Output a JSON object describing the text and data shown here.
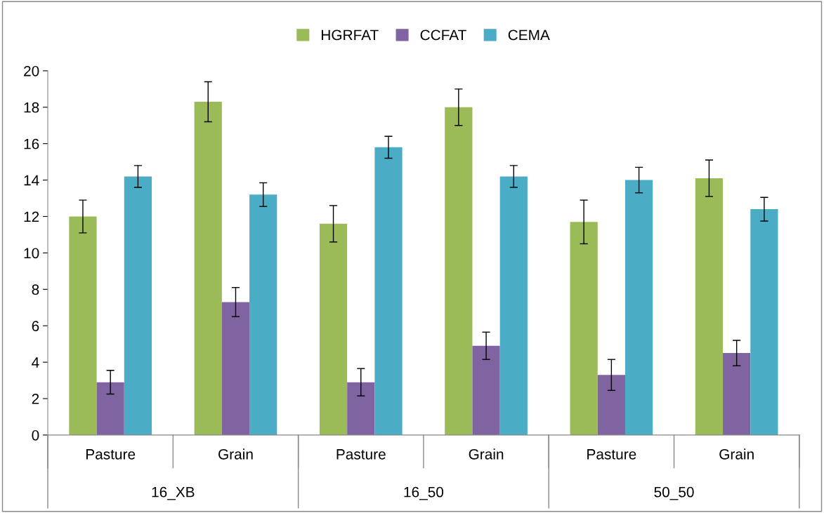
{
  "chart_data": {
    "type": "bar",
    "categories": [
      "Pasture",
      "Grain",
      "Pasture",
      "Grain",
      "Pasture",
      "Grain"
    ],
    "series": [
      {
        "name": "HGRFAT",
        "color": "#9bbb59",
        "values": [
          12.0,
          18.3,
          11.6,
          18.0,
          11.7,
          14.1
        ],
        "errors": [
          0.9,
          1.1,
          1.0,
          1.0,
          1.2,
          1.0
        ]
      },
      {
        "name": "CCFAT",
        "color": "#8064a2",
        "values": [
          2.9,
          7.3,
          2.9,
          4.9,
          3.3,
          4.5
        ],
        "errors": [
          0.65,
          0.8,
          0.75,
          0.75,
          0.85,
          0.7
        ]
      },
      {
        "name": "CEMA",
        "color": "#4bacc6",
        "values": [
          14.2,
          13.2,
          15.8,
          14.2,
          14.0,
          12.4
        ],
        "errors": [
          0.6,
          0.65,
          0.6,
          0.6,
          0.7,
          0.65
        ]
      }
    ],
    "annotations": [
      "16_XB",
      "16_50",
      "50_50"
    ],
    "ylim": [
      0,
      20
    ],
    "yticks": [
      0,
      2,
      4,
      6,
      8,
      10,
      12,
      14,
      16,
      18,
      20
    ],
    "grid": false,
    "legend": "top"
  }
}
